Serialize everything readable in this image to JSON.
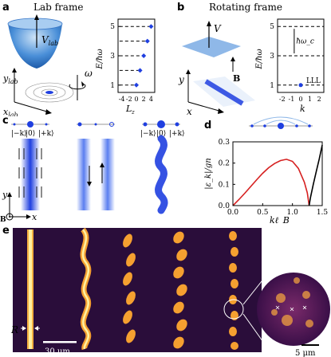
{
  "panel_a": {
    "letter": "a",
    "title": "Lab frame",
    "bowl_label": "V_lab",
    "axis_y": "y_lab",
    "axis_x": "x_lab",
    "omega": "ω",
    "ylabel": "E/ħω",
    "xlabel": "L_z",
    "yticks": [
      "1",
      "3",
      "5"
    ],
    "xticks": [
      "-4",
      "-2",
      "0",
      "2",
      "4"
    ]
  },
  "panel_b": {
    "letter": "b",
    "title": "Rotating frame",
    "plane_label": "V",
    "field_label": "B",
    "axis_y": "y",
    "axis_x": "x",
    "ylabel": "E/ħω",
    "xlabel": "k",
    "yticks": [
      "1",
      "3",
      "5"
    ],
    "xticks": [
      "-2",
      "-1",
      "0",
      "1",
      "2"
    ],
    "gap_label": "ħω_c",
    "lll_label": "LLL"
  },
  "panel_c": {
    "letter": "c",
    "modes": [
      "|−k⟩",
      "|0⟩",
      "|+k⟩"
    ],
    "axis_y": "y",
    "axis_x": "x",
    "field": "B"
  },
  "panel_d": {
    "letter": "d",
    "ylabel": "|ε_k|/gn",
    "xlabel": "kℓ_B",
    "yticks": [
      "0.0",
      "0.1",
      "0.2",
      "0.3"
    ],
    "xticks": [
      "0.0",
      "0.5",
      "1.0",
      "1.5"
    ]
  },
  "panel_e": {
    "letter": "e",
    "radius_label": "R",
    "scale_main": "30 μm",
    "scale_inset": "5 μm"
  },
  "chart_data": [
    {
      "type": "scatter",
      "panel": "a",
      "xlabel": "L_z",
      "ylabel": "E/ħω",
      "points": [
        [
          0,
          1
        ],
        [
          1,
          2
        ],
        [
          2,
          3
        ],
        [
          3,
          4
        ],
        [
          4,
          5
        ]
      ],
      "degenerate_levels": [
        1,
        2,
        3,
        4,
        5
      ],
      "xlim": [
        -5,
        5
      ],
      "ylim": [
        0.5,
        5.5
      ]
    },
    {
      "type": "scatter",
      "panel": "b",
      "xlabel": "k",
      "ylabel": "E/ħω",
      "points": [
        [
          0,
          1
        ]
      ],
      "landau_levels": [
        1,
        3,
        5
      ],
      "xlim": [
        -2.5,
        2.5
      ],
      "ylim": [
        0.5,
        5.5
      ]
    },
    {
      "type": "line",
      "panel": "d",
      "xlabel": "kℓ_B",
      "ylabel": "|ε_k|/gn",
      "xlim": [
        0,
        1.5
      ],
      "ylim": [
        0,
        0.3
      ],
      "series": [
        {
          "color": "#d62020",
          "x": [
            0,
            0.1,
            0.2,
            0.3,
            0.4,
            0.5,
            0.6,
            0.7,
            0.8,
            0.9,
            1.0,
            1.1,
            1.2,
            1.25,
            1.28
          ],
          "y": [
            0,
            0.028,
            0.058,
            0.09,
            0.122,
            0.152,
            0.178,
            0.198,
            0.212,
            0.218,
            0.208,
            0.175,
            0.11,
            0.06,
            0.0
          ]
        },
        {
          "color": "#000000",
          "x": [
            1.28,
            1.3,
            1.35,
            1.4,
            1.45,
            1.5
          ],
          "y": [
            0.0,
            0.035,
            0.1,
            0.16,
            0.22,
            0.285
          ]
        }
      ]
    }
  ],
  "colors": {
    "blue": "#1f3fe0",
    "red": "#d62020",
    "light_blue": "#8fb8e8"
  }
}
